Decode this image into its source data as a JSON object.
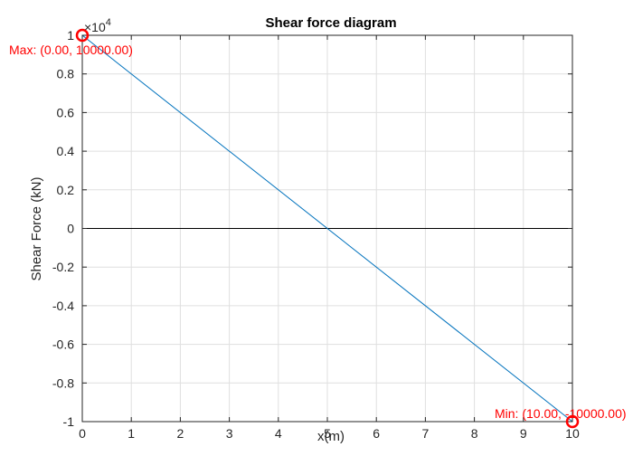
{
  "chart_data": {
    "type": "line",
    "title": "Shear force diagram",
    "xlabel": "x(m)",
    "ylabel": "Shear Force (kN)",
    "xlim": [
      0,
      10
    ],
    "ylim": [
      -10000,
      10000
    ],
    "xticks": [
      0,
      1,
      2,
      3,
      4,
      5,
      6,
      7,
      8,
      9,
      10
    ],
    "yticks": [
      -10000,
      -8000,
      -6000,
      -4000,
      -2000,
      0,
      2000,
      4000,
      6000,
      8000,
      10000
    ],
    "ytick_labels": [
      "-1",
      "-0.8",
      "-0.6",
      "-0.4",
      "-0.2",
      "0",
      "0.2",
      "0.4",
      "0.6",
      "0.8",
      "1"
    ],
    "y_exponent_base": "×10",
    "y_exponent_power": "4",
    "grid": true,
    "zero_line": true,
    "series": [
      {
        "x": [
          0,
          10
        ],
        "y": [
          10000,
          -10000
        ],
        "color": "#0072BD"
      }
    ],
    "markers": [
      {
        "kind": "max",
        "x": 0,
        "y": 10000,
        "label": "Max: (0.00, 10000.00)",
        "color": "#ff0000"
      },
      {
        "kind": "min",
        "x": 10,
        "y": -10000,
        "label": "Min: (10.00, -10000.00)",
        "color": "#ff0000"
      }
    ],
    "colors": {
      "line": "#0072BD",
      "grid": "#dfdfdf",
      "axes": "#262626",
      "zero_line": "#000000",
      "annotation": "#ff0000"
    }
  }
}
